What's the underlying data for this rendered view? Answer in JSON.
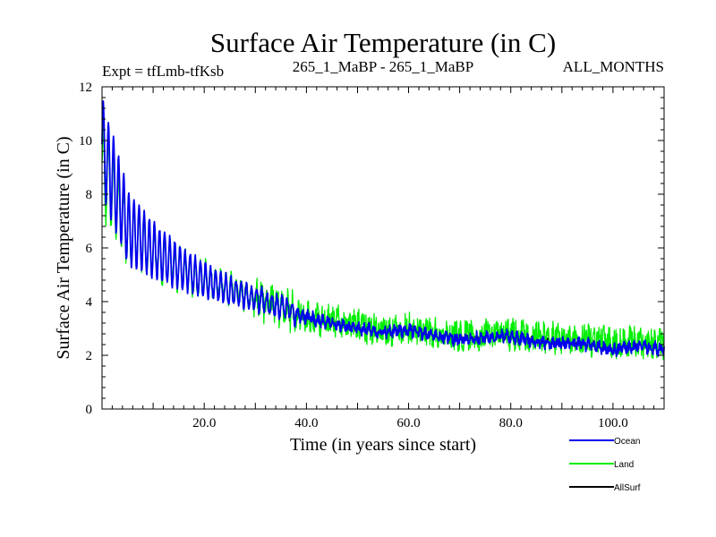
{
  "chart_data": {
    "type": "line",
    "title": "Surface Air Temperature (in C)",
    "subtitle_left": "Expt = tfLmb-tfKsb",
    "subtitle_center": "265_1_MaBP - 265_1_MaBP",
    "subtitle_right": "ALL_MONTHS",
    "xlabel": "Time (in years since start)",
    "ylabel": "Surface Air Temperature (in C)",
    "xlim": [
      0,
      110
    ],
    "ylim": [
      0,
      12
    ],
    "x_ticks": [
      20,
      40,
      60,
      80,
      100
    ],
    "x_tick_labels": [
      "20.0",
      "40.0",
      "60.0",
      "80.0",
      "100.0"
    ],
    "y_ticks": [
      0,
      2,
      4,
      6,
      8,
      10,
      12
    ],
    "y_tick_labels": [
      "0",
      "2",
      "4",
      "6",
      "8",
      "10",
      "12"
    ],
    "legend_position": "bottom-right outside",
    "series": [
      {
        "name": "Land",
        "color": "#00ee00",
        "x": [
          0,
          5,
          10,
          15,
          20,
          25,
          30,
          35,
          40,
          45,
          50,
          55,
          60,
          65,
          70,
          75,
          80,
          85,
          90,
          95,
          100,
          105,
          110
        ],
        "values": [
          9.0,
          6.6,
          5.8,
          5.2,
          4.8,
          4.5,
          4.1,
          3.8,
          3.4,
          3.3,
          3.1,
          2.95,
          3.0,
          2.8,
          2.7,
          2.75,
          2.8,
          2.7,
          2.6,
          2.55,
          2.5,
          2.45,
          2.4
        ]
      },
      {
        "name": "Ocean",
        "color": "#0000ee",
        "x": [
          0,
          5,
          10,
          15,
          20,
          25,
          30,
          35,
          40,
          45,
          50,
          55,
          60,
          65,
          70,
          75,
          80,
          85,
          90,
          95,
          100,
          105,
          110
        ],
        "values": [
          9.8,
          6.8,
          5.9,
          5.3,
          4.8,
          4.4,
          4.1,
          3.8,
          3.4,
          3.2,
          3.0,
          2.85,
          2.95,
          2.7,
          2.6,
          2.65,
          2.7,
          2.5,
          2.45,
          2.4,
          2.2,
          2.35,
          2.2
        ]
      },
      {
        "name": "AllSurf",
        "color": "#000000",
        "x": [
          0,
          5,
          10,
          15,
          20,
          25,
          30,
          35,
          40,
          45,
          50,
          55,
          60,
          65,
          70,
          75,
          80,
          85,
          90,
          95,
          100,
          105,
          110
        ],
        "values": [
          9.6,
          6.75,
          5.85,
          5.25,
          4.8,
          4.43,
          4.1,
          3.8,
          3.4,
          3.23,
          3.03,
          2.88,
          2.96,
          2.73,
          2.63,
          2.68,
          2.73,
          2.56,
          2.49,
          2.44,
          2.29,
          2.38,
          2.26
        ]
      }
    ],
    "legend": [
      {
        "name": "Ocean",
        "color": "#0000ee"
      },
      {
        "name": "Land",
        "color": "#00ee00"
      },
      {
        "name": "AllSurf",
        "color": "#000000"
      }
    ]
  }
}
